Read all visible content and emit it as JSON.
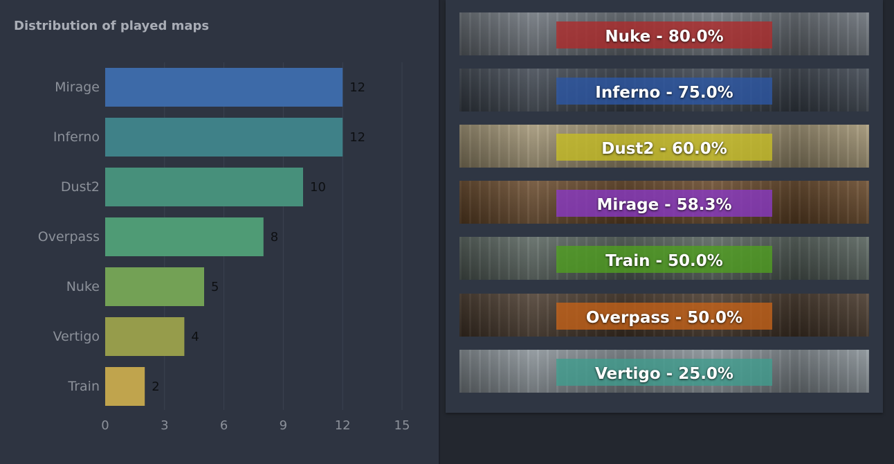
{
  "left_panel": {
    "title": "Distribution of played maps"
  },
  "chart_data": {
    "type": "bar",
    "orientation": "horizontal",
    "title": "Distribution of played maps",
    "categories": [
      "Mirage",
      "Inferno",
      "Dust2",
      "Overpass",
      "Nuke",
      "Vertigo",
      "Train"
    ],
    "values": [
      12,
      12,
      10,
      8,
      5,
      4,
      2
    ],
    "bar_colors": [
      "#3d6aa8",
      "#3f8188",
      "#47907b",
      "#4f9b75",
      "#73a155",
      "#969c4b",
      "#c0a44d"
    ],
    "x_ticks": [
      0,
      3,
      6,
      9,
      12,
      15
    ],
    "xlim": [
      0,
      15
    ],
    "grid": "vertical",
    "xlabel": "",
    "ylabel": ""
  },
  "win_rates": {
    "items": [
      {
        "label": "Nuke - 80.0%",
        "map": "Nuke",
        "value": 80.0,
        "band_color": "#b02a2a",
        "image_base": "#6f767e"
      },
      {
        "label": "Inferno - 75.0%",
        "map": "Inferno",
        "value": 75.0,
        "band_color": "#2b57a6",
        "image_base": "#3f4752"
      },
      {
        "label": "Dust2 - 60.0%",
        "map": "Dust2",
        "value": 60.0,
        "band_color": "#c6be24",
        "image_base": "#a89a78"
      },
      {
        "label": "Mirage - 58.3%",
        "map": "Mirage",
        "value": 58.3,
        "band_color": "#8a39c8",
        "image_base": "#6b4a2a"
      },
      {
        "label": "Train - 50.0%",
        "map": "Train",
        "value": 50.0,
        "band_color": "#4fa01f",
        "image_base": "#5a6660"
      },
      {
        "label": "Overpass - 50.0%",
        "map": "Overpass",
        "value": 50.0,
        "band_color": "#c66318",
        "image_base": "#4a3a2c"
      },
      {
        "label": "Vertigo - 25.0%",
        "map": "Vertigo",
        "value": 25.0,
        "band_color": "#3f9e8e",
        "image_base": "#8d969c"
      }
    ]
  }
}
